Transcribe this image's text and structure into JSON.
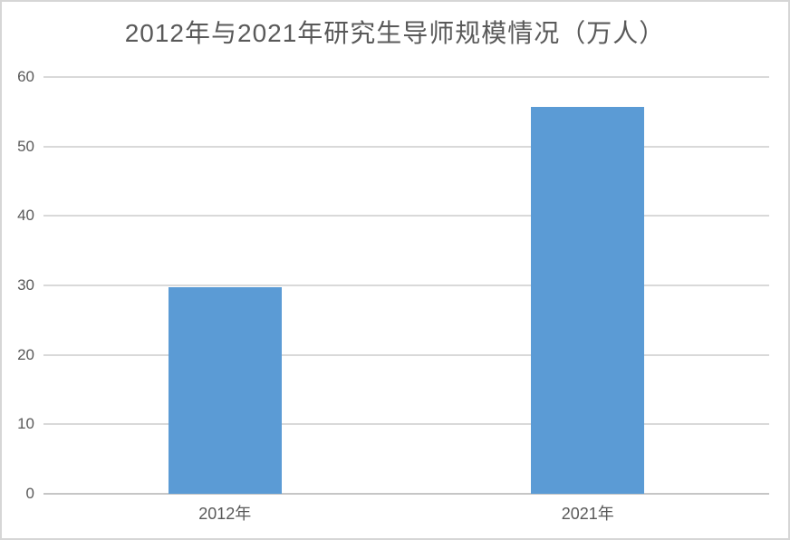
{
  "chart_data": {
    "type": "bar",
    "title": "2012年与2021年研究生导师规模情况（万人）",
    "categories": [
      "2012年",
      "2021年"
    ],
    "values": [
      29.8,
      55.7
    ],
    "xlabel": "",
    "ylabel": "",
    "ylim": [
      0,
      60
    ],
    "yticks": [
      0,
      10,
      20,
      30,
      40,
      50,
      60
    ],
    "grid": true,
    "legend": false,
    "unit": "万人",
    "colors": {
      "bar": "#5b9bd5",
      "gridline": "#d9d9d9",
      "axis_line": "#c6c6c6",
      "text": "#595959",
      "title": "#595959",
      "background": "#ffffff",
      "frame_border": "#d6d6d6"
    }
  }
}
